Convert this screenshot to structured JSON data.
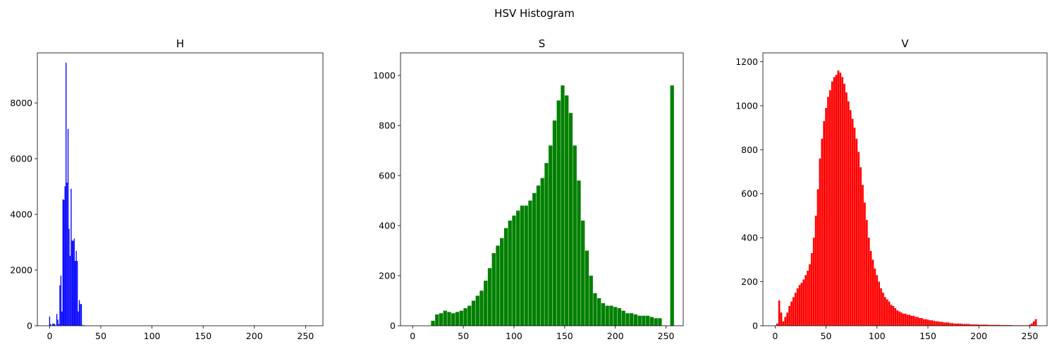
{
  "figure": {
    "title": "HSV Histogram"
  },
  "chart_data": [
    {
      "type": "bar",
      "title": "H",
      "color": "#0000ff",
      "xlim": [
        -12,
        267
      ],
      "ylim": [
        0,
        9800
      ],
      "xticks": [
        0,
        50,
        100,
        150,
        200,
        250
      ],
      "yticks": [
        0,
        2000,
        4000,
        6000,
        8000
      ],
      "x": [
        0,
        1,
        2,
        3,
        4,
        5,
        6,
        7,
        8,
        9,
        10,
        11,
        12,
        13,
        14,
        15,
        16,
        17,
        18,
        19,
        20,
        21,
        22,
        23,
        24,
        25,
        26,
        27,
        28,
        29,
        30,
        31,
        32,
        33,
        34,
        35,
        36,
        37,
        38,
        39,
        40
      ],
      "values": [
        330,
        60,
        0,
        80,
        70,
        60,
        0,
        420,
        220,
        60,
        1450,
        1800,
        510,
        4540,
        4520,
        5010,
        9450,
        5140,
        7070,
        3480,
        2510,
        4920,
        3060,
        3050,
        3130,
        2330,
        2690,
        2320,
        510,
        920,
        780,
        780,
        30,
        0,
        20,
        0,
        0,
        0,
        0,
        0,
        0
      ]
    },
    {
      "type": "bar",
      "title": "S",
      "color": "#008000",
      "xlim": [
        -12,
        267
      ],
      "ylim": [
        0,
        1090
      ],
      "xticks": [
        0,
        50,
        100,
        150,
        200,
        250
      ],
      "yticks": [
        0,
        200,
        400,
        600,
        800,
        1000
      ],
      "x": [
        0,
        4,
        8,
        12,
        16,
        20,
        24,
        28,
        32,
        36,
        40,
        44,
        48,
        52,
        56,
        60,
        64,
        68,
        72,
        76,
        80,
        84,
        88,
        92,
        96,
        100,
        104,
        108,
        112,
        116,
        120,
        124,
        128,
        132,
        136,
        140,
        144,
        148,
        152,
        156,
        160,
        164,
        168,
        172,
        176,
        180,
        184,
        188,
        192,
        196,
        200,
        204,
        208,
        212,
        216,
        220,
        224,
        228,
        232,
        236,
        240,
        244,
        248,
        252,
        256
      ],
      "values": [
        0,
        0,
        0,
        0,
        0,
        20,
        45,
        50,
        60,
        55,
        50,
        55,
        60,
        70,
        80,
        100,
        120,
        140,
        180,
        230,
        290,
        320,
        350,
        390,
        420,
        440,
        460,
        480,
        480,
        500,
        530,
        560,
        590,
        650,
        720,
        820,
        900,
        960,
        920,
        850,
        720,
        580,
        420,
        300,
        200,
        130,
        110,
        90,
        80,
        80,
        75,
        70,
        60,
        50,
        50,
        45,
        40,
        40,
        40,
        35,
        30,
        30,
        0,
        0,
        960
      ]
    },
    {
      "type": "bar",
      "title": "V",
      "color": "#ff0000",
      "xlim": [
        -12,
        267
      ],
      "ylim": [
        0,
        1240
      ],
      "xticks": [
        0,
        50,
        100,
        150,
        200,
        250
      ],
      "yticks": [
        0,
        200,
        400,
        600,
        800,
        1000,
        1200
      ],
      "x": [
        0,
        2,
        4,
        6,
        8,
        10,
        12,
        14,
        16,
        18,
        20,
        22,
        24,
        26,
        28,
        30,
        32,
        34,
        36,
        38,
        40,
        42,
        44,
        46,
        48,
        50,
        52,
        54,
        56,
        58,
        60,
        62,
        64,
        66,
        68,
        70,
        72,
        74,
        76,
        78,
        80,
        82,
        84,
        86,
        88,
        90,
        92,
        94,
        96,
        98,
        100,
        102,
        104,
        106,
        108,
        110,
        112,
        114,
        116,
        118,
        120,
        122,
        124,
        126,
        128,
        130,
        132,
        134,
        136,
        138,
        140,
        142,
        144,
        146,
        148,
        150,
        152,
        154,
        156,
        158,
        160,
        162,
        164,
        166,
        168,
        170,
        172,
        174,
        176,
        178,
        180,
        182,
        184,
        186,
        188,
        190,
        192,
        194,
        196,
        198,
        200,
        202,
        204,
        206,
        208,
        210,
        212,
        214,
        216,
        218,
        220,
        222,
        224,
        226,
        228,
        230,
        232,
        234,
        236,
        238,
        240,
        242,
        244,
        246,
        248,
        250,
        252,
        254,
        256
      ],
      "values": [
        0,
        10,
        115,
        60,
        20,
        40,
        60,
        90,
        110,
        130,
        150,
        170,
        185,
        195,
        210,
        230,
        250,
        280,
        330,
        400,
        500,
        620,
        760,
        850,
        930,
        990,
        1040,
        1070,
        1110,
        1130,
        1140,
        1160,
        1150,
        1130,
        1100,
        1060,
        1020,
        980,
        940,
        900,
        850,
        790,
        720,
        640,
        560,
        480,
        400,
        340,
        300,
        260,
        230,
        200,
        170,
        150,
        130,
        120,
        110,
        95,
        90,
        80,
        70,
        65,
        60,
        55,
        55,
        50,
        50,
        45,
        45,
        40,
        40,
        35,
        35,
        30,
        30,
        28,
        25,
        25,
        22,
        20,
        20,
        18,
        18,
        15,
        15,
        15,
        12,
        12,
        10,
        10,
        10,
        10,
        8,
        8,
        8,
        8,
        6,
        6,
        6,
        6,
        5,
        5,
        5,
        5,
        5,
        4,
        4,
        4,
        4,
        4,
        4,
        3,
        3,
        3,
        3,
        3,
        3,
        2,
        2,
        2,
        2,
        2,
        2,
        2,
        2,
        5,
        10,
        20,
        30
      ]
    }
  ]
}
